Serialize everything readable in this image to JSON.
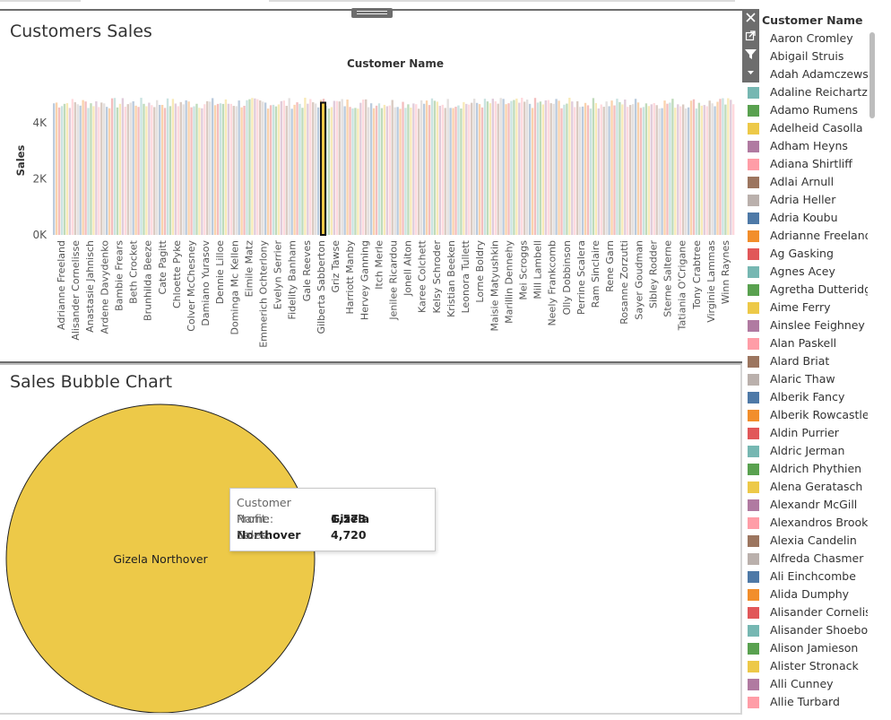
{
  "colors": {
    "tableau_palette": [
      "#4e79a7",
      "#f28e2b",
      "#e15759",
      "#76b7b2",
      "#59a14f",
      "#edc948",
      "#b07aa1",
      "#ff9da7",
      "#9c755f",
      "#bab0ac"
    ],
    "bubble_fill": "#edc948",
    "highlight_fill": "#edc948"
  },
  "top_panel": {
    "title": "Customers Sales"
  },
  "bottom_panel": {
    "title": "Sales Bubble Chart"
  },
  "tooltip": {
    "rows": [
      {
        "key": "Customer Name:",
        "value": "Gizela Northover"
      },
      {
        "key": "Profit:",
        "value": "1,573"
      },
      {
        "key": "Sales:",
        "value": "4,720"
      }
    ]
  },
  "toolbar": {
    "icons": [
      "close-icon",
      "popout-icon",
      "filter-icon",
      "dropdown-icon"
    ]
  },
  "legend": {
    "title": "Customer Name",
    "items": [
      {
        "label": "Aaron Cromley",
        "color": "#4e79a7"
      },
      {
        "label": "Abigail Struis",
        "color": "#f28e2b"
      },
      {
        "label": "Adah Adamczewski",
        "color": "#e15759"
      },
      {
        "label": "Adaline Reichartz",
        "color": "#76b7b2"
      },
      {
        "label": "Adamo Rumens",
        "color": "#59a14f"
      },
      {
        "label": "Adelheid Casolla",
        "color": "#edc948"
      },
      {
        "label": "Adham Heyns",
        "color": "#b07aa1"
      },
      {
        "label": "Adiana Shirtliff",
        "color": "#ff9da7"
      },
      {
        "label": "Adlai Arnull",
        "color": "#9c755f"
      },
      {
        "label": "Adria Heller",
        "color": "#bab0ac"
      },
      {
        "label": "Adria Koubu",
        "color": "#4e79a7"
      },
      {
        "label": "Adrianne Freeland",
        "color": "#f28e2b"
      },
      {
        "label": "Ag Gasking",
        "color": "#e15759"
      },
      {
        "label": "Agnes Acey",
        "color": "#76b7b2"
      },
      {
        "label": "Agretha Dutteridge",
        "color": "#59a14f"
      },
      {
        "label": "Aime Ferry",
        "color": "#edc948"
      },
      {
        "label": "Ainslee Feighney",
        "color": "#b07aa1"
      },
      {
        "label": "Alan Paskell",
        "color": "#ff9da7"
      },
      {
        "label": "Alard Briat",
        "color": "#9c755f"
      },
      {
        "label": "Alaric Thaw",
        "color": "#bab0ac"
      },
      {
        "label": "Alberik Fancy",
        "color": "#4e79a7"
      },
      {
        "label": "Alberik Rowcastle",
        "color": "#f28e2b"
      },
      {
        "label": "Aldin Purrier",
        "color": "#e15759"
      },
      {
        "label": "Aldric Jerman",
        "color": "#76b7b2"
      },
      {
        "label": "Aldrich Phythien",
        "color": "#59a14f"
      },
      {
        "label": "Alena Geratasch",
        "color": "#edc948"
      },
      {
        "label": "Alexandr McGill",
        "color": "#b07aa1"
      },
      {
        "label": "Alexandros Brook..",
        "color": "#ff9da7"
      },
      {
        "label": "Alexia Candelin",
        "color": "#9c755f"
      },
      {
        "label": "Alfreda Chasmer",
        "color": "#bab0ac"
      },
      {
        "label": "Ali Einchcombe",
        "color": "#4e79a7"
      },
      {
        "label": "Alida Dumphy",
        "color": "#f28e2b"
      },
      {
        "label": "Alisander Cornelis..",
        "color": "#e15759"
      },
      {
        "label": "Alisander Shoebot..",
        "color": "#76b7b2"
      },
      {
        "label": "Alison Jamieson",
        "color": "#59a14f"
      },
      {
        "label": "Alister Stronack",
        "color": "#edc948"
      },
      {
        "label": "Alli Cunney",
        "color": "#b07aa1"
      },
      {
        "label": "Allie Turbard",
        "color": "#ff9da7"
      }
    ]
  },
  "chart_data": [
    {
      "type": "bar",
      "title": "Customers Sales",
      "xlabel": "Customer Name",
      "ylabel": "Sales",
      "y_ticks": [
        "4K",
        "2K",
        "0K"
      ],
      "y_tick_values": [
        4000,
        2000,
        0
      ],
      "ylim": [
        0,
        5000
      ],
      "bar_count": 258,
      "approx_value_range": [
        4500,
        4900
      ],
      "highlighted": {
        "category": "Gizela Northover",
        "value": 4720
      },
      "x_tick_labels": [
        "Adrianne Freeland",
        "Alisander Cornelisse",
        "Anastasie Jahnisch",
        "Ardene Davydenko",
        "Bambie Frears",
        "Beth Crocket",
        "Brunhilda Beeze",
        "Cate Pagitt",
        "Chloette Pyke",
        "Colver McChesney",
        "Damiano Yurasov",
        "Dennie Lilloe",
        "Dominga Mc Kellen",
        "Eimile Matz",
        "Emmerich Ochterlony",
        "Evelyn Serrier",
        "Fidelity Banham",
        "Gale Reeves",
        "Gilberta Sabberton",
        "Griz Tawse",
        "Harriott Manby",
        "Hervey Ganning",
        "Itch Merle",
        "Jenilee Ricardou",
        "Jonell Aiton",
        "Karee Colchett",
        "Kelsy Schroder",
        "Kristian Beeken",
        "Leonora Tullett",
        "Lorne Boldry",
        "Maisie Matyushkin",
        "Marillin Dennehy",
        "Mei Scroggs",
        "Mill Lambell",
        "Neely Frankcomb",
        "Olly Dobbinson",
        "Perrine Scalera",
        "Ram Sinclaire",
        "Rene Garn",
        "Rosanne Zorzutti",
        "Sayer Goudman",
        "Sibley Rodder",
        "Sterne Salterne",
        "Tatiania O'Crigane",
        "Tony Crabtree",
        "Virginie Lammas",
        "Winn Raynes"
      ],
      "grid": false,
      "legend": "right"
    },
    {
      "type": "scatter",
      "title": "Sales Bubble Chart",
      "points": [
        {
          "label": "Gizela Northover",
          "sales": 4720,
          "profit": 1573
        }
      ],
      "grid": false
    }
  ]
}
